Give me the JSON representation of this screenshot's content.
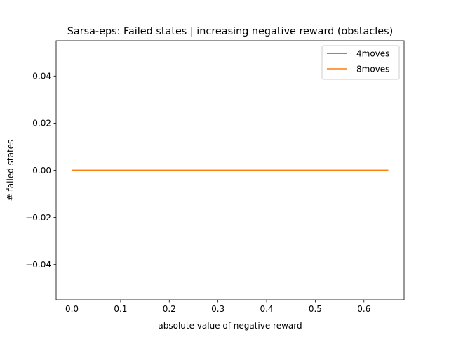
{
  "chart_data": {
    "type": "line",
    "title": "Sarsa-eps: Failed states | increasing negative reward (obstacles)",
    "xlabel": "absolute value of negative reward",
    "ylabel": "# failed states",
    "xlim": [
      -0.0325,
      0.6825
    ],
    "ylim": [
      -0.055,
      0.055
    ],
    "x_ticks": [
      0.0,
      0.1,
      0.2,
      0.3,
      0.4,
      0.5,
      0.6
    ],
    "x_tick_labels": [
      "0.0",
      "0.1",
      "0.2",
      "0.3",
      "0.4",
      "0.5",
      "0.6"
    ],
    "y_ticks": [
      -0.04,
      -0.02,
      0.0,
      0.02,
      0.04
    ],
    "y_tick_labels": [
      "−0.04",
      "−0.02",
      "0.00",
      "0.02",
      "0.04"
    ],
    "grid": false,
    "legend_position": "top-right",
    "series": [
      {
        "name": "4moves",
        "color": "#1f77b4",
        "x": [
          0.0,
          0.65
        ],
        "y": [
          0,
          0
        ]
      },
      {
        "name": "8moves",
        "color": "#ff7f0e",
        "x": [
          0.0,
          0.65
        ],
        "y": [
          0,
          0
        ]
      }
    ]
  }
}
